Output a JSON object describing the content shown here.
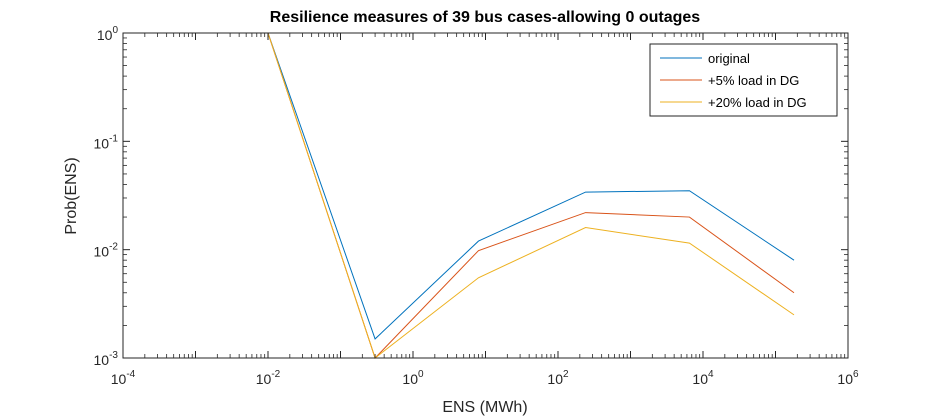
{
  "chart_data": {
    "type": "line",
    "title": "Resilience measures of 39 bus cases-allowing 0 outages",
    "xlabel": "ENS (MWh)",
    "ylabel": "Prob(ENS)",
    "xscale": "log",
    "yscale": "log",
    "xlim": [
      0.0001,
      1000000
    ],
    "ylim": [
      0.001,
      1
    ],
    "xticks": [
      {
        "base": "10",
        "exp": "-4"
      },
      {
        "base": "10",
        "exp": "-2"
      },
      {
        "base": "10",
        "exp": "0"
      },
      {
        "base": "10",
        "exp": "2"
      },
      {
        "base": "10",
        "exp": "4"
      },
      {
        "base": "10",
        "exp": "6"
      }
    ],
    "yticks": [
      {
        "base": "10",
        "exp": "-3"
      },
      {
        "base": "10",
        "exp": "-2"
      },
      {
        "base": "10",
        "exp": "-1"
      },
      {
        "base": "10",
        "exp": "0"
      }
    ],
    "legend_position": "top-right",
    "grid": false,
    "series": [
      {
        "name": "original",
        "color": "#0072BD",
        "x": [
          0.01,
          0.3,
          8,
          240,
          6500,
          180000
        ],
        "y": [
          1.0,
          0.0015,
          0.012,
          0.034,
          0.035,
          0.008
        ]
      },
      {
        "name": "+5% load in DG",
        "color": "#D95319",
        "x": [
          0.01,
          0.3,
          8,
          240,
          6500,
          180000
        ],
        "y": [
          1.0,
          0.001,
          0.0098,
          0.022,
          0.02,
          0.004
        ]
      },
      {
        "name": "+20% load in DG",
        "color": "#EDB120",
        "x": [
          0.01,
          0.3,
          8,
          240,
          6500,
          180000
        ],
        "y": [
          1.0,
          0.001,
          0.0055,
          0.016,
          0.0115,
          0.0025
        ]
      }
    ]
  }
}
